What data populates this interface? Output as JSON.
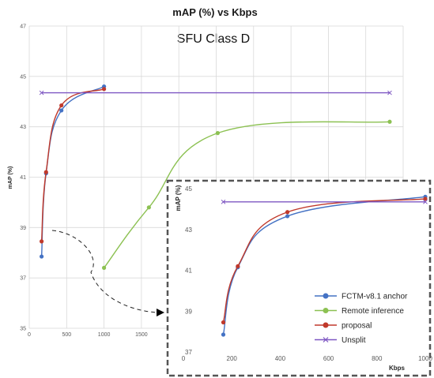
{
  "chart_data": [
    {
      "type": "line",
      "title": "mAP (%) vs Kbps",
      "subtitle": "SFU Class D",
      "xlabel": "",
      "ylabel": "mAP (%)",
      "xlim": [
        0,
        5000
      ],
      "ylim": [
        35,
        47
      ],
      "x_ticks": [
        "0",
        "500",
        "1000",
        "1500"
      ],
      "y_ticks": [
        "35",
        "37",
        "39",
        "41",
        "43",
        "45",
        "47"
      ],
      "grid": true,
      "series": [
        {
          "name": "FCTM-v8.1 anchor",
          "color": "#4472c4",
          "x": [
            165,
            225,
            430,
            1000
          ],
          "y": [
            37.85,
            41.15,
            43.65,
            44.6
          ]
        },
        {
          "name": "Remote inference",
          "color": "#8cc152",
          "x": [
            1000,
            1600,
            2520,
            4820
          ],
          "y": [
            37.4,
            39.8,
            42.75,
            43.2
          ]
        },
        {
          "name": "proposal",
          "color": "#c0392b",
          "x": [
            165,
            225,
            430,
            1000
          ],
          "y": [
            38.45,
            41.2,
            43.85,
            44.5
          ]
        },
        {
          "name": "Unsplit",
          "color": "#7e57c2",
          "x": [
            165,
            4820
          ],
          "y": [
            44.35,
            44.35
          ]
        }
      ]
    },
    {
      "type": "line",
      "title": "",
      "xlabel": "Kbps",
      "ylabel": "mAP (%)",
      "xlim": [
        0,
        1000
      ],
      "ylim": [
        37,
        45
      ],
      "x_ticks": [
        "0",
        "200",
        "400",
        "600",
        "800",
        "1000"
      ],
      "y_ticks": [
        "37",
        "39",
        "41",
        "43",
        "45"
      ],
      "grid": false,
      "legend": "bottom-right",
      "series": [
        {
          "name": "FCTM-v8.1 anchor",
          "color": "#4472c4",
          "x": [
            165,
            225,
            430,
            1000
          ],
          "y": [
            37.85,
            41.15,
            43.65,
            44.6
          ]
        },
        {
          "name": "Remote inference",
          "color": "#8cc152",
          "x": [],
          "y": []
        },
        {
          "name": "proposal",
          "color": "#c0392b",
          "x": [
            165,
            225,
            430,
            1000
          ],
          "y": [
            38.45,
            41.2,
            43.85,
            44.5
          ]
        },
        {
          "name": "Unsplit",
          "color": "#7e57c2",
          "x": [
            165,
            1000
          ],
          "y": [
            44.35,
            44.35
          ]
        }
      ]
    }
  ]
}
